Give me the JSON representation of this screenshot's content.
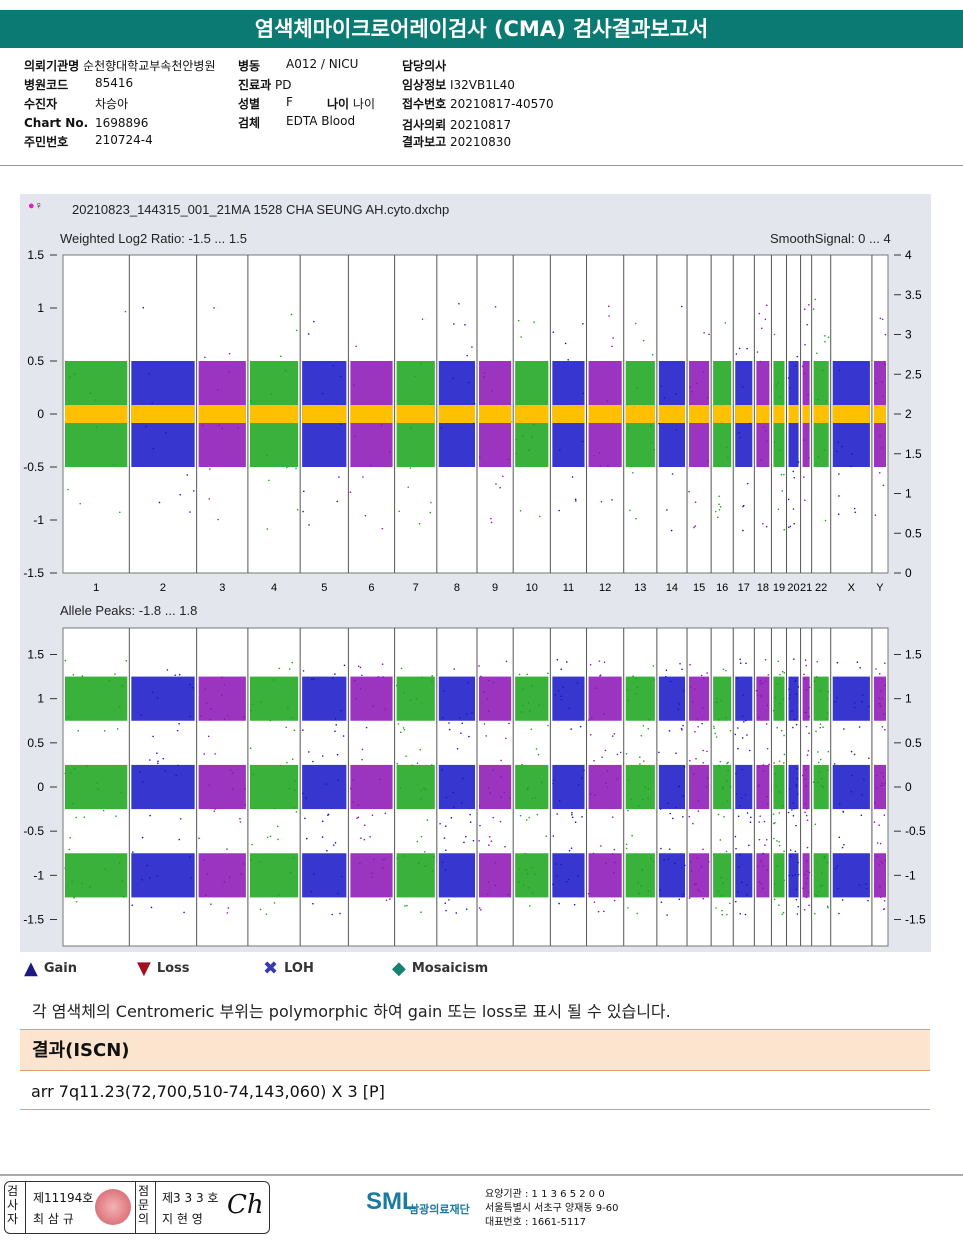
{
  "title": "염색체마이크로어레이검사 (CMA) 검사결과보고서",
  "info": {
    "institution_label": "의뢰기관명",
    "institution": "순천향대학교부속천안병원",
    "ward_label": "병동",
    "ward": "A012 / NICU",
    "doctor_label": "담당의사",
    "hospital_code_label": "병원코드",
    "hospital_code": "85416",
    "dept_label": "진료과",
    "dept": "PD",
    "clinical_label": "임상정보",
    "clinical": "I32VB1L40",
    "patient_label": "수진자",
    "patient": "차승아",
    "sex_label": "성별",
    "sex": "F",
    "age_label": "나이",
    "age": "나이",
    "receipt_label": "접수번호",
    "receipt": "20210817-40570",
    "chart_label": "Chart No.",
    "chart": "1698896",
    "specimen_label": "검체",
    "specimen": "EDTA Blood",
    "request_label": "검사의뢰",
    "request": "20210817",
    "id_label": "주민번호",
    "id": "210724-4",
    "report_label": "결과보고",
    "report": "20210830"
  },
  "chart_data": [
    {
      "type": "scatter",
      "title": "20210823_144315_001_21MA 1528 CHA SEUNG AH.cyto.dxchp",
      "left_label": "Weighted Log2 Ratio: -1.5 ... 1.5",
      "right_label": "SmoothSignal: 0 ... 4",
      "ylim": [
        -1.5,
        1.5
      ],
      "y2lim": [
        0,
        4
      ],
      "yticks": [
        "1.5",
        "1",
        "0.5",
        "0",
        "-0.5",
        "-1",
        "-1.5"
      ],
      "y2ticks": [
        "4",
        "3.5",
        "3",
        "2.5",
        "2",
        "1.5",
        "1",
        "0.5",
        "0"
      ],
      "categories": [
        "1",
        "2",
        "3",
        "4",
        "5",
        "6",
        "7",
        "8",
        "9",
        "10",
        "11",
        "12",
        "13",
        "14",
        "15",
        "16",
        "17",
        "18",
        "19",
        "20",
        "21",
        "22",
        "X",
        "Y"
      ],
      "chrom_weights": [
        66,
        67,
        51,
        52,
        48,
        46,
        42,
        40,
        36,
        37,
        36,
        37,
        33,
        30,
        24,
        22,
        21,
        17,
        15,
        14,
        11,
        19,
        41,
        16
      ],
      "series_colors": [
        "#17a317",
        "#1414c8",
        "#8a12b4"
      ],
      "smooth_color": "#ffc000",
      "smooth_value": 2
    },
    {
      "type": "scatter",
      "left_label": "Allele Peaks: -1.8 ... 1.8",
      "ylim": [
        -1.8,
        1.8
      ],
      "yticks": [
        "1.5",
        "1",
        "0.5",
        "0",
        "-0.5",
        "-1",
        "-1.5"
      ],
      "y2ticks": [
        "1.5",
        "1",
        "0.5",
        "0",
        "-0.5",
        "-1",
        "-1.5"
      ],
      "peaks": [
        1,
        0,
        -1
      ]
    }
  ],
  "legend": [
    {
      "label": "Gain",
      "color": "#1a1a80"
    },
    {
      "label": "Loss",
      "color": "#a01020"
    },
    {
      "label": "LOH",
      "color": "#3a3ab0"
    },
    {
      "label": "Mosaicism",
      "color": "#1a8070"
    }
  ],
  "note": "각 염색체의 Centromeric 부위는 polymorphic 하여 gain 또는 loss로 표시 될 수 있습니다.",
  "result_title": "결과(ISCN)",
  "result": "arr 7q11.23(72,700,510-74,143,060) X 3 [P]",
  "footer": {
    "examiner_label": "검사자",
    "examiner_no": "제11194호",
    "examiner": "최 삼 규",
    "confirm_label": "점문의",
    "confirm_no": "제3 3 3 호",
    "confirm": "지 현 영",
    "logo": "SML",
    "org": "삼광의료재단",
    "code": "요양기관 : 1 1 3 6 5 2 0 0",
    "address": "서울특별시 서초구 양재동 9-60",
    "phone": "대표번호 : 1661-5117"
  }
}
